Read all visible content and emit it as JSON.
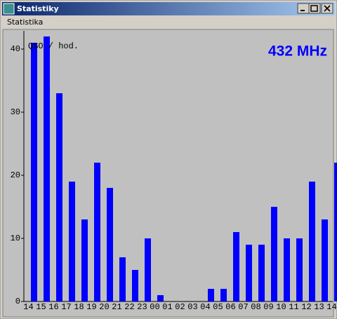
{
  "window": {
    "title": "Statistiky",
    "menu": [
      "Statistika"
    ]
  },
  "chart_data": {
    "type": "bar",
    "title": "432 MHz",
    "y_label": "QSO / hod.",
    "categories": [
      "14",
      "15",
      "16",
      "17",
      "18",
      "19",
      "20",
      "21",
      "22",
      "23",
      "00",
      "01",
      "02",
      "03",
      "04",
      "05",
      "06",
      "07",
      "08",
      "09",
      "10",
      "11",
      "12",
      "13",
      "14"
    ],
    "values": [
      41,
      42,
      33,
      19,
      13,
      22,
      18,
      7,
      5,
      10,
      1,
      0,
      0,
      0,
      2,
      2,
      11,
      9,
      9,
      15,
      10,
      10,
      19,
      13,
      22
    ],
    "color": "#0000ff",
    "ylim": [
      0,
      43
    ],
    "yticks": [
      0,
      10,
      20,
      30,
      40
    ],
    "grid": false
  }
}
